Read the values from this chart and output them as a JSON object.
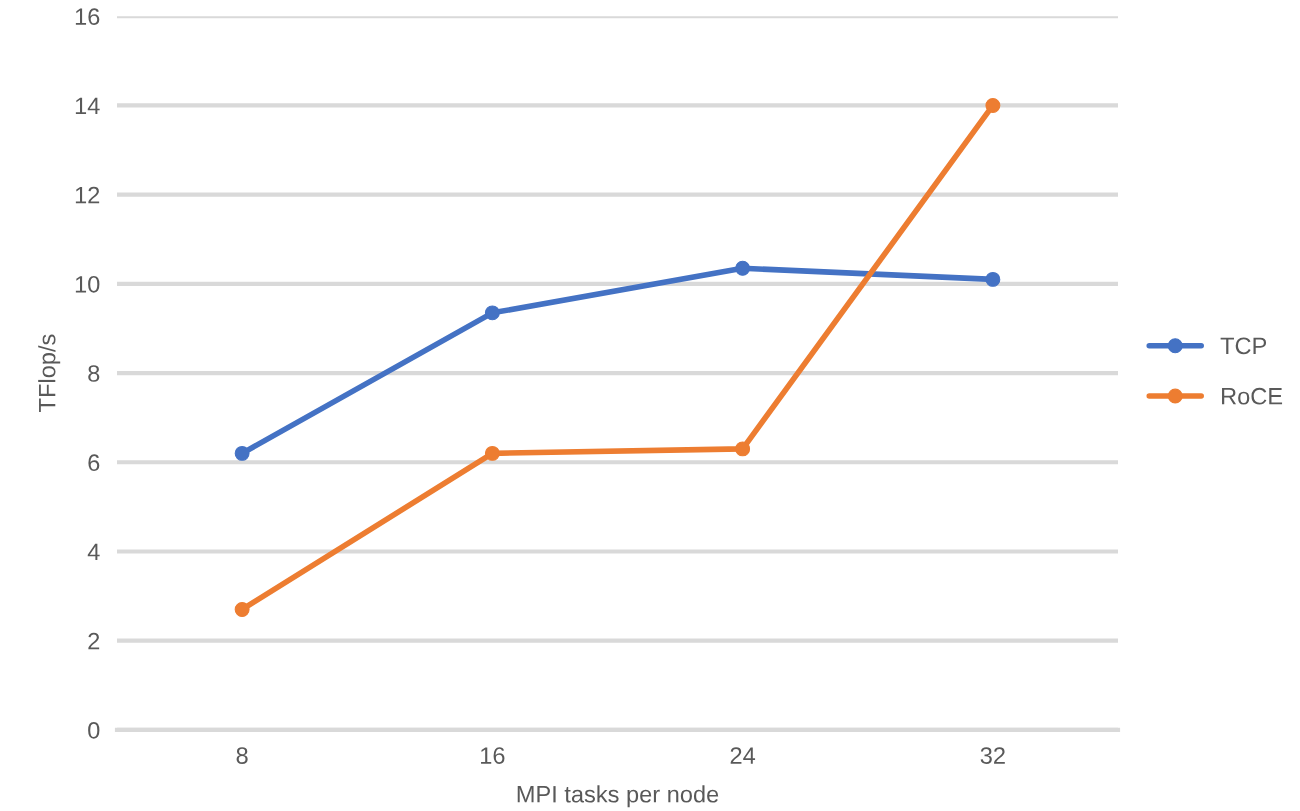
{
  "chart_data": {
    "type": "line",
    "xlabel": "MPI tasks per node",
    "ylabel": "TFlop/s",
    "categories": [
      "8",
      "16",
      "24",
      "32"
    ],
    "series": [
      {
        "name": "TCP",
        "color": "#4472c4",
        "values": [
          6.2,
          9.35,
          10.35,
          10.1
        ]
      },
      {
        "name": "RoCE",
        "color": "#ed7d31",
        "values": [
          2.7,
          6.2,
          6.3,
          14
        ]
      }
    ],
    "ylim": [
      0,
      16
    ],
    "yticks": [
      0,
      2,
      4,
      6,
      8,
      10,
      12,
      14,
      16
    ],
    "grid": "y",
    "legend": "right",
    "marker": "circle",
    "line_style": "solid"
  }
}
